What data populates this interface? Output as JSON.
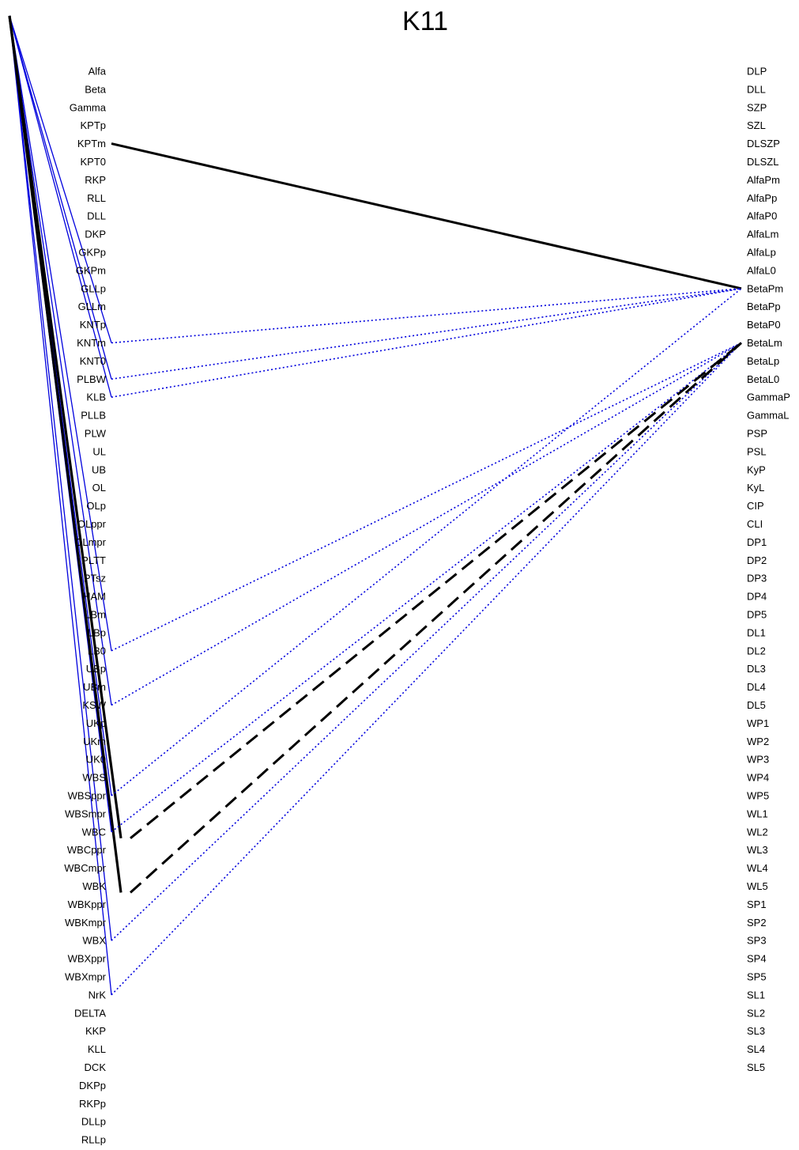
{
  "title": "K11",
  "left_labels": [
    "Alfa",
    "Beta",
    "Gamma",
    "KPTp",
    "KPTm",
    "KPT0",
    "RKP",
    "RLL",
    "DLL",
    "DKP",
    "GKPp",
    "GKPm",
    "GLLp",
    "GLLm",
    "KNTp",
    "KNTm",
    "KNT0",
    "PLBW",
    "KLB",
    "PLLB",
    "PLW",
    "UL",
    "UB",
    "OL",
    "OLp",
    "OLppr",
    "OLmpr",
    "PLTT",
    "PTsz",
    "HAM",
    "LBm",
    "LBp",
    "LB0",
    "UBp",
    "UBm",
    "KSW",
    "UKp",
    "UKm",
    "UK0",
    "WBS",
    "WBSppr",
    "WBSmpr",
    "WBC",
    "WBCppr",
    "WBCmpr",
    "WBK",
    "WBKppr",
    "WBKmpr",
    "WBX",
    "WBXppr",
    "WBXmpr",
    "NrK",
    "DELTA",
    "KKP",
    "KLL",
    "DCK",
    "DKPp",
    "RKPp",
    "DLLp",
    "RLLp"
  ],
  "right_labels": [
    "DLP",
    "DLL",
    "SZP",
    "SZL",
    "DLSZP",
    "DLSZL",
    "AlfaPm",
    "AlfaPp",
    "AlfaP0",
    "AlfaLm",
    "AlfaLp",
    "AlfaL0",
    "BetaPm",
    "BetaPp",
    "BetaP0",
    "BetaLm",
    "BetaLp",
    "BetaL0",
    "GammaP",
    "GammaL",
    "PSP",
    "PSL",
    "KyP",
    "KyL",
    "CIP",
    "CLI",
    "DP1",
    "DP2",
    "DP3",
    "DP4",
    "DP5",
    "DL1",
    "DL2",
    "DL3",
    "DL4",
    "DL5",
    "WP1",
    "WP2",
    "WP3",
    "WP4",
    "WP5",
    "WL1",
    "WL2",
    "WL3",
    "WL4",
    "WL5",
    "SP1",
    "SP2",
    "SP3",
    "SP4",
    "SP5",
    "SL1",
    "SL2",
    "SL3",
    "SL4",
    "SL5"
  ],
  "colors": {
    "blue": "#0000dd",
    "black": "#000000"
  },
  "blue_spokes": [
    "KNTm",
    "PLBW",
    "KLB",
    "LB0",
    "KSW",
    "WBSppr",
    "WBC",
    "WBX",
    "NrK"
  ],
  "black_spokes": [
    "WBC",
    "WBK"
  ],
  "links": [
    {
      "from": "KPTm",
      "to": "BetaPm",
      "style": "solid-black"
    },
    {
      "from": "KNTm",
      "to": "BetaPm",
      "style": "dotted-blue"
    },
    {
      "from": "PLBW",
      "to": "BetaPm",
      "style": "dotted-blue"
    },
    {
      "from": "KLB",
      "to": "BetaPm",
      "style": "dotted-blue"
    },
    {
      "from": "LB0",
      "to": "BetaLm",
      "style": "dotted-blue"
    },
    {
      "from": "KSW",
      "to": "BetaLm",
      "style": "dotted-blue"
    },
    {
      "from": "WBSppr",
      "to": "BetaPm",
      "style": "dotted-blue"
    },
    {
      "from": "WBC",
      "to": "BetaLm",
      "style": "dotted-blue"
    },
    {
      "from": "WBX",
      "to": "BetaLm",
      "style": "dotted-blue"
    },
    {
      "from": "NrK",
      "to": "BetaLm",
      "style": "dotted-blue"
    },
    {
      "from": "WBC",
      "to": "BetaLm",
      "style": "dashed-black"
    },
    {
      "from": "WBK",
      "to": "BetaLm",
      "style": "dashed-black"
    }
  ]
}
